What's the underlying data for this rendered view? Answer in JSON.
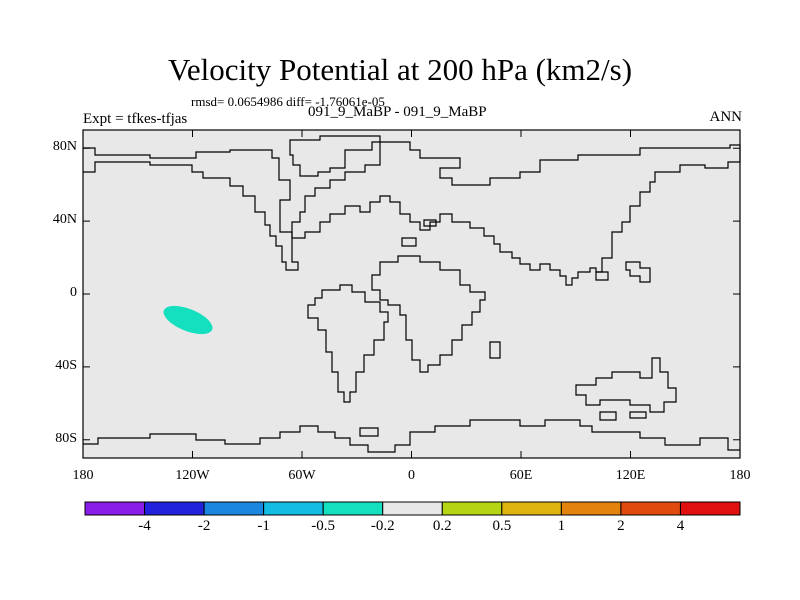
{
  "header": {
    "title": "Velocity Potential at 200 hPa (km2/s)",
    "stats": "rmsd= 0.0654986 diff= -1.76061e-05",
    "expt": "Expt = tfkes-tfjas",
    "case": "091_9_MaBP - 091_9_MaBP",
    "season": "ANN"
  },
  "map": {
    "lon_range": [
      -180,
      180
    ],
    "lat_range": [
      -90,
      90
    ],
    "background_color": "#e8e8e8",
    "feature_color": "#14e0c0",
    "feature": {
      "lon": -120,
      "lat": -14,
      "value_class": "-0.5 to -0.2"
    },
    "lat_ticks": [
      {
        "lat": 80,
        "label": "80N"
      },
      {
        "lat": 40,
        "label": "40N"
      },
      {
        "lat": 0,
        "label": "0"
      },
      {
        "lat": -40,
        "label": "40S"
      },
      {
        "lat": -80,
        "label": "80S"
      }
    ],
    "lon_ticks": [
      {
        "lon": -180,
        "label": "180"
      },
      {
        "lon": -120,
        "label": "120W"
      },
      {
        "lon": -60,
        "label": "60W"
      },
      {
        "lon": 0,
        "label": "0"
      },
      {
        "lon": 60,
        "label": "60E"
      },
      {
        "lon": 120,
        "label": "120E"
      },
      {
        "lon": 180,
        "label": "180"
      }
    ]
  },
  "colorbar": {
    "colors": [
      "#8a1ee8",
      "#2222dc",
      "#1a86de",
      "#12bce2",
      "#14e0c0",
      "#e8e8e8",
      "#b4d414",
      "#e0b410",
      "#e4820e",
      "#e04a0c",
      "#e01010"
    ],
    "labels": [
      "-4",
      "-2",
      "-1",
      "-0.5",
      "-0.2",
      "0.2",
      "0.5",
      "1",
      "2",
      "4"
    ]
  }
}
